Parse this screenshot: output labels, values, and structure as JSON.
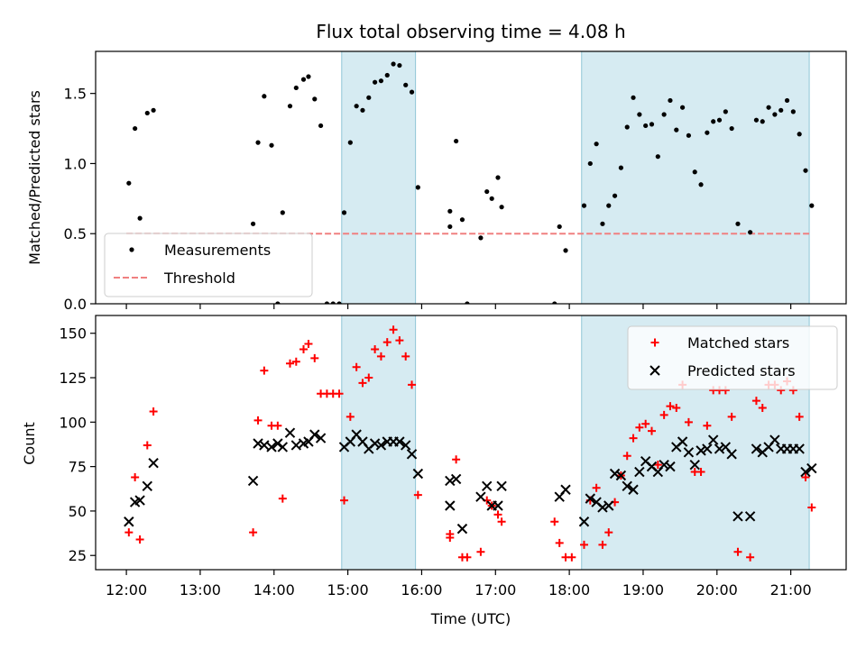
{
  "chart_data": [
    {
      "type": "scatter",
      "title": "Flux total observing time = 4.08 h",
      "ylabel": "Matched/Predicted stars",
      "ylim": [
        0,
        1.8
      ],
      "yticks": [
        0.0,
        0.5,
        1.0,
        1.5
      ],
      "ytick_labels": [
        "0.0",
        "0.5",
        "1.0",
        "1.5"
      ],
      "legend_position": "lower-left",
      "shaded_intervals": [
        [
          "14:55",
          "15:55"
        ],
        [
          "18:10",
          "21:15"
        ]
      ],
      "threshold": {
        "name": "Threshold",
        "value": 0.5,
        "color": "#f08080",
        "x_range": [
          "12:00",
          "21:15"
        ]
      },
      "series": [
        {
          "name": "Measurements",
          "color": "#000000",
          "points": [
            [
              "12:02",
              0.86
            ],
            [
              "12:07",
              1.25
            ],
            [
              "12:11",
              0.61
            ],
            [
              "12:17",
              1.36
            ],
            [
              "12:22",
              1.38
            ],
            [
              "13:43",
              0.57
            ],
            [
              "13:47",
              1.15
            ],
            [
              "13:52",
              1.48
            ],
            [
              "13:58",
              1.13
            ],
            [
              "14:03",
              0.0
            ],
            [
              "14:07",
              0.65
            ],
            [
              "14:13",
              1.41
            ],
            [
              "14:18",
              1.54
            ],
            [
              "14:24",
              1.6
            ],
            [
              "14:28",
              1.62
            ],
            [
              "14:33",
              1.46
            ],
            [
              "14:38",
              1.27
            ],
            [
              "14:43",
              0.0
            ],
            [
              "14:48",
              0.0
            ],
            [
              "14:53",
              0.0
            ],
            [
              "14:57",
              0.65
            ],
            [
              "15:02",
              1.15
            ],
            [
              "15:07",
              1.41
            ],
            [
              "15:12",
              1.38
            ],
            [
              "15:17",
              1.47
            ],
            [
              "15:22",
              1.58
            ],
            [
              "15:27",
              1.59
            ],
            [
              "15:32",
              1.63
            ],
            [
              "15:37",
              1.71
            ],
            [
              "15:42",
              1.7
            ],
            [
              "15:47",
              1.56
            ],
            [
              "15:52",
              1.51
            ],
            [
              "15:57",
              0.83
            ],
            [
              "16:23",
              0.66
            ],
            [
              "16:23",
              0.55
            ],
            [
              "16:28",
              1.16
            ],
            [
              "16:33",
              0.6
            ],
            [
              "16:37",
              0.0
            ],
            [
              "16:48",
              0.47
            ],
            [
              "16:53",
              0.8
            ],
            [
              "16:57",
              0.75
            ],
            [
              "17:02",
              0.9
            ],
            [
              "17:05",
              0.69
            ],
            [
              "17:48",
              0.0
            ],
            [
              "17:52",
              0.55
            ],
            [
              "17:57",
              0.38
            ],
            [
              "18:12",
              0.7
            ],
            [
              "18:17",
              1.0
            ],
            [
              "18:22",
              1.14
            ],
            [
              "18:27",
              0.57
            ],
            [
              "18:32",
              0.7
            ],
            [
              "18:37",
              0.77
            ],
            [
              "18:42",
              0.97
            ],
            [
              "18:47",
              1.26
            ],
            [
              "18:52",
              1.47
            ],
            [
              "18:57",
              1.35
            ],
            [
              "19:02",
              1.27
            ],
            [
              "19:07",
              1.28
            ],
            [
              "19:12",
              1.05
            ],
            [
              "19:17",
              1.35
            ],
            [
              "19:22",
              1.45
            ],
            [
              "19:27",
              1.24
            ],
            [
              "19:32",
              1.4
            ],
            [
              "19:37",
              1.2
            ],
            [
              "19:42",
              0.94
            ],
            [
              "19:47",
              0.85
            ],
            [
              "19:52",
              1.22
            ],
            [
              "19:57",
              1.3
            ],
            [
              "20:02",
              1.31
            ],
            [
              "20:07",
              1.37
            ],
            [
              "20:12",
              1.25
            ],
            [
              "20:17",
              0.57
            ],
            [
              "20:27",
              0.51
            ],
            [
              "20:32",
              1.31
            ],
            [
              "20:37",
              1.3
            ],
            [
              "20:42",
              1.4
            ],
            [
              "20:47",
              1.35
            ],
            [
              "20:52",
              1.38
            ],
            [
              "20:57",
              1.45
            ],
            [
              "21:02",
              1.37
            ],
            [
              "21:07",
              1.21
            ],
            [
              "21:12",
              0.95
            ],
            [
              "21:17",
              0.7
            ]
          ]
        }
      ]
    },
    {
      "type": "scatter",
      "xlabel": "Time (UTC)",
      "ylabel": "Count",
      "ylim": [
        17,
        160
      ],
      "yticks": [
        25,
        50,
        75,
        100,
        125,
        150
      ],
      "ytick_labels": [
        "25",
        "50",
        "75",
        "100",
        "125",
        "150"
      ],
      "xlim": [
        "11:35",
        "21:45"
      ],
      "xticks": [
        "12:00",
        "13:00",
        "14:00",
        "15:00",
        "16:00",
        "17:00",
        "18:00",
        "19:00",
        "20:00",
        "21:00"
      ],
      "legend_position": "upper-right",
      "shaded_intervals": [
        [
          "14:55",
          "15:55"
        ],
        [
          "18:10",
          "21:15"
        ]
      ],
      "series": [
        {
          "name": "Matched stars",
          "color": "#ff0000",
          "marker": "plus",
          "points": [
            [
              "12:02",
              38
            ],
            [
              "12:07",
              69
            ],
            [
              "12:11",
              34
            ],
            [
              "12:17",
              87
            ],
            [
              "12:22",
              106
            ],
            [
              "13:43",
              38
            ],
            [
              "13:47",
              101
            ],
            [
              "13:52",
              129
            ],
            [
              "13:58",
              98
            ],
            [
              "14:03",
              98
            ],
            [
              "14:07",
              57
            ],
            [
              "14:13",
              133
            ],
            [
              "14:18",
              134
            ],
            [
              "14:24",
              141
            ],
            [
              "14:28",
              144
            ],
            [
              "14:33",
              136
            ],
            [
              "14:38",
              116
            ],
            [
              "14:43",
              116
            ],
            [
              "14:48",
              116
            ],
            [
              "14:53",
              116
            ],
            [
              "14:57",
              56
            ],
            [
              "15:02",
              103
            ],
            [
              "15:07",
              131
            ],
            [
              "15:12",
              122
            ],
            [
              "15:17",
              125
            ],
            [
              "15:22",
              141
            ],
            [
              "15:27",
              137
            ],
            [
              "15:32",
              145
            ],
            [
              "15:37",
              152
            ],
            [
              "15:42",
              146
            ],
            [
              "15:47",
              137
            ],
            [
              "15:52",
              121
            ],
            [
              "15:57",
              59
            ],
            [
              "16:23",
              35
            ],
            [
              "16:23",
              37
            ],
            [
              "16:28",
              79
            ],
            [
              "16:33",
              24
            ],
            [
              "16:37",
              24
            ],
            [
              "16:48",
              27
            ],
            [
              "16:53",
              56
            ],
            [
              "16:57",
              53
            ],
            [
              "17:02",
              48
            ],
            [
              "17:05",
              44
            ],
            [
              "17:48",
              44
            ],
            [
              "17:52",
              32
            ],
            [
              "17:57",
              24
            ],
            [
              "18:02",
              24
            ],
            [
              "18:12",
              31
            ],
            [
              "18:17",
              56
            ],
            [
              "18:22",
              63
            ],
            [
              "18:27",
              31
            ],
            [
              "18:32",
              38
            ],
            [
              "18:37",
              55
            ],
            [
              "18:42",
              70
            ],
            [
              "18:47",
              81
            ],
            [
              "18:52",
              91
            ],
            [
              "18:57",
              97
            ],
            [
              "19:02",
              99
            ],
            [
              "19:07",
              95
            ],
            [
              "19:12",
              76
            ],
            [
              "19:17",
              104
            ],
            [
              "19:22",
              109
            ],
            [
              "19:27",
              108
            ],
            [
              "19:32",
              121
            ],
            [
              "19:37",
              100
            ],
            [
              "19:42",
              72
            ],
            [
              "19:47",
              72
            ],
            [
              "19:52",
              98
            ],
            [
              "19:57",
              118
            ],
            [
              "20:02",
              118
            ],
            [
              "20:07",
              118
            ],
            [
              "20:12",
              103
            ],
            [
              "20:17",
              27
            ],
            [
              "20:27",
              24
            ],
            [
              "20:32",
              112
            ],
            [
              "20:37",
              108
            ],
            [
              "20:42",
              121
            ],
            [
              "20:47",
              121
            ],
            [
              "20:52",
              118
            ],
            [
              "20:57",
              123
            ],
            [
              "21:02",
              118
            ],
            [
              "21:07",
              103
            ],
            [
              "21:12",
              69
            ],
            [
              "21:17",
              52
            ]
          ]
        },
        {
          "name": "Predicted stars",
          "color": "#000000",
          "marker": "x",
          "points": [
            [
              "12:02",
              44
            ],
            [
              "12:07",
              55
            ],
            [
              "12:11",
              56
            ],
            [
              "12:17",
              64
            ],
            [
              "12:22",
              77
            ],
            [
              "13:43",
              67
            ],
            [
              "13:47",
              88
            ],
            [
              "13:52",
              87
            ],
            [
              "13:58",
              86
            ],
            [
              "14:03",
              88
            ],
            [
              "14:07",
              86
            ],
            [
              "14:13",
              94
            ],
            [
              "14:18",
              87
            ],
            [
              "14:24",
              88
            ],
            [
              "14:28",
              89
            ],
            [
              "14:33",
              93
            ],
            [
              "14:38",
              91
            ],
            [
              "14:57",
              86
            ],
            [
              "15:02",
              89
            ],
            [
              "15:07",
              93
            ],
            [
              "15:12",
              89
            ],
            [
              "15:17",
              85
            ],
            [
              "15:22",
              88
            ],
            [
              "15:27",
              87
            ],
            [
              "15:32",
              89
            ],
            [
              "15:37",
              89
            ],
            [
              "15:42",
              89
            ],
            [
              "15:47",
              87
            ],
            [
              "15:52",
              82
            ],
            [
              "15:57",
              71
            ],
            [
              "16:23",
              53
            ],
            [
              "16:23",
              67
            ],
            [
              "16:28",
              68
            ],
            [
              "16:33",
              40
            ],
            [
              "16:48",
              58
            ],
            [
              "16:53",
              64
            ],
            [
              "16:57",
              53
            ],
            [
              "17:02",
              53
            ],
            [
              "17:05",
              64
            ],
            [
              "17:52",
              58
            ],
            [
              "17:57",
              62
            ],
            [
              "18:12",
              44
            ],
            [
              "18:17",
              57
            ],
            [
              "18:22",
              55
            ],
            [
              "18:27",
              52
            ],
            [
              "18:32",
              53
            ],
            [
              "18:37",
              71
            ],
            [
              "18:42",
              70
            ],
            [
              "18:47",
              64
            ],
            [
              "18:52",
              62
            ],
            [
              "18:57",
              72
            ],
            [
              "19:02",
              78
            ],
            [
              "19:07",
              75
            ],
            [
              "19:12",
              72
            ],
            [
              "19:17",
              76
            ],
            [
              "19:22",
              75
            ],
            [
              "19:27",
              86
            ],
            [
              "19:32",
              89
            ],
            [
              "19:37",
              83
            ],
            [
              "19:42",
              76
            ],
            [
              "19:47",
              84
            ],
            [
              "19:52",
              85
            ],
            [
              "19:57",
              90
            ],
            [
              "20:02",
              85
            ],
            [
              "20:07",
              86
            ],
            [
              "20:12",
              82
            ],
            [
              "20:17",
              47
            ],
            [
              "20:27",
              47
            ],
            [
              "20:32",
              85
            ],
            [
              "20:37",
              83
            ],
            [
              "20:42",
              86
            ],
            [
              "20:47",
              90
            ],
            [
              "20:52",
              85
            ],
            [
              "20:57",
              85
            ],
            [
              "21:02",
              85
            ],
            [
              "21:07",
              85
            ],
            [
              "21:12",
              72
            ],
            [
              "21:17",
              74
            ]
          ]
        }
      ]
    }
  ]
}
